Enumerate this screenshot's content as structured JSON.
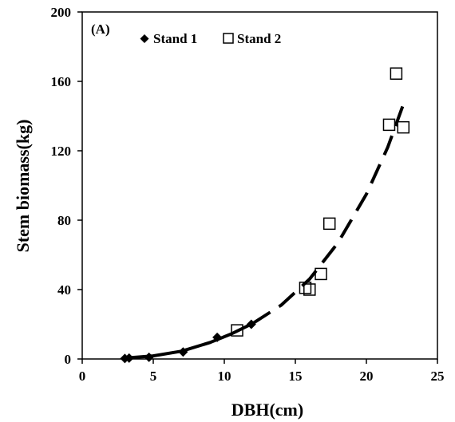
{
  "chart_data": {
    "type": "scatter",
    "panel_label": "(A)",
    "xlabel": "DBH(cm)",
    "ylabel": "Stem biomass(kg)",
    "xlim": [
      0,
      25
    ],
    "ylim": [
      0,
      200
    ],
    "xticks": [
      0,
      5,
      10,
      15,
      20,
      25
    ],
    "yticks": [
      0,
      40,
      80,
      120,
      160,
      200
    ],
    "grid": false,
    "legend_position": "top",
    "series": [
      {
        "name": "Stand 1",
        "marker": "filled-diamond",
        "color": "#000000",
        "points": [
          {
            "x": 3.0,
            "y": 0.3
          },
          {
            "x": 3.3,
            "y": 0.5
          },
          {
            "x": 4.7,
            "y": 1.0
          },
          {
            "x": 7.1,
            "y": 4.0
          },
          {
            "x": 9.5,
            "y": 12.5
          },
          {
            "x": 11.9,
            "y": 20.0
          }
        ]
      },
      {
        "name": "Stand 2",
        "marker": "open-square",
        "color": "#000000",
        "points": [
          {
            "x": 10.9,
            "y": 16.5
          },
          {
            "x": 15.7,
            "y": 41.0
          },
          {
            "x": 16.0,
            "y": 40.0
          },
          {
            "x": 16.8,
            "y": 49.0
          },
          {
            "x": 17.4,
            "y": 78.0
          },
          {
            "x": 21.6,
            "y": 135.0
          },
          {
            "x": 22.1,
            "y": 164.5
          },
          {
            "x": 22.6,
            "y": 133.5
          }
        ]
      }
    ],
    "fits": [
      {
        "style": "solid",
        "points": [
          {
            "x": 3.0,
            "y": 0.5
          },
          {
            "x": 5.0,
            "y": 1.8
          },
          {
            "x": 7.0,
            "y": 4.5
          },
          {
            "x": 9.0,
            "y": 9.5
          },
          {
            "x": 10.5,
            "y": 14.5
          },
          {
            "x": 12.0,
            "y": 20.5
          }
        ]
      },
      {
        "style": "dashed",
        "points": [
          {
            "x": 12.0,
            "y": 20.5
          },
          {
            "x": 14.0,
            "y": 31.0
          },
          {
            "x": 16.0,
            "y": 46.0
          },
          {
            "x": 18.0,
            "y": 67.0
          },
          {
            "x": 20.0,
            "y": 95.0
          },
          {
            "x": 21.5,
            "y": 122.0
          },
          {
            "x": 22.7,
            "y": 149.0
          }
        ]
      }
    ]
  }
}
